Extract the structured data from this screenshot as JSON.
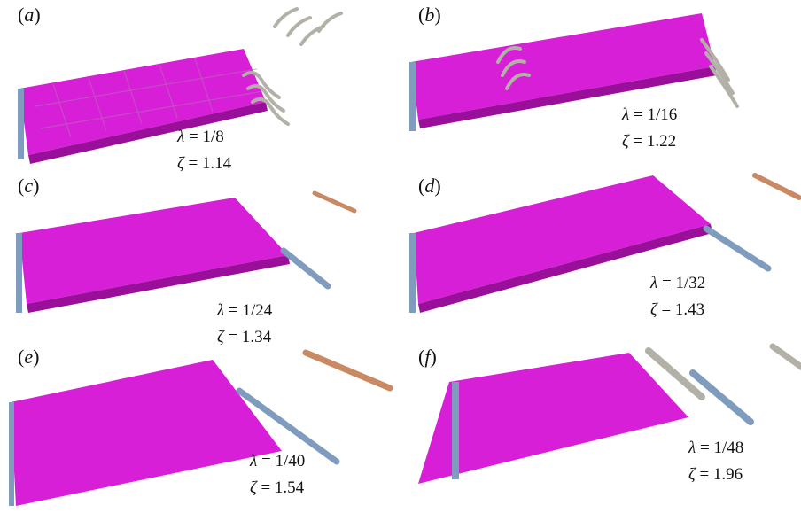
{
  "figure": {
    "panels": [
      {
        "label": "a",
        "lambda": "1/8",
        "zeta": "1.14"
      },
      {
        "label": "b",
        "lambda": "1/16",
        "zeta": "1.22"
      },
      {
        "label": "c",
        "lambda": "1/24",
        "zeta": "1.34"
      },
      {
        "label": "d",
        "lambda": "1/32",
        "zeta": "1.43"
      },
      {
        "label": "e",
        "lambda": "1/40",
        "zeta": "1.54"
      },
      {
        "label": "f",
        "lambda": "1/48",
        "zeta": "1.96"
      }
    ],
    "symbols": {
      "lambda": "λ",
      "zeta": "ζ",
      "equals": " = "
    },
    "colors": {
      "surface": "#d81fd8",
      "surface_dark": "#9a0f9a",
      "vortex_blue": "#7f9cbf",
      "vortex_grey": "#b3b0a8",
      "vortex_tan": "#c98a63"
    }
  }
}
